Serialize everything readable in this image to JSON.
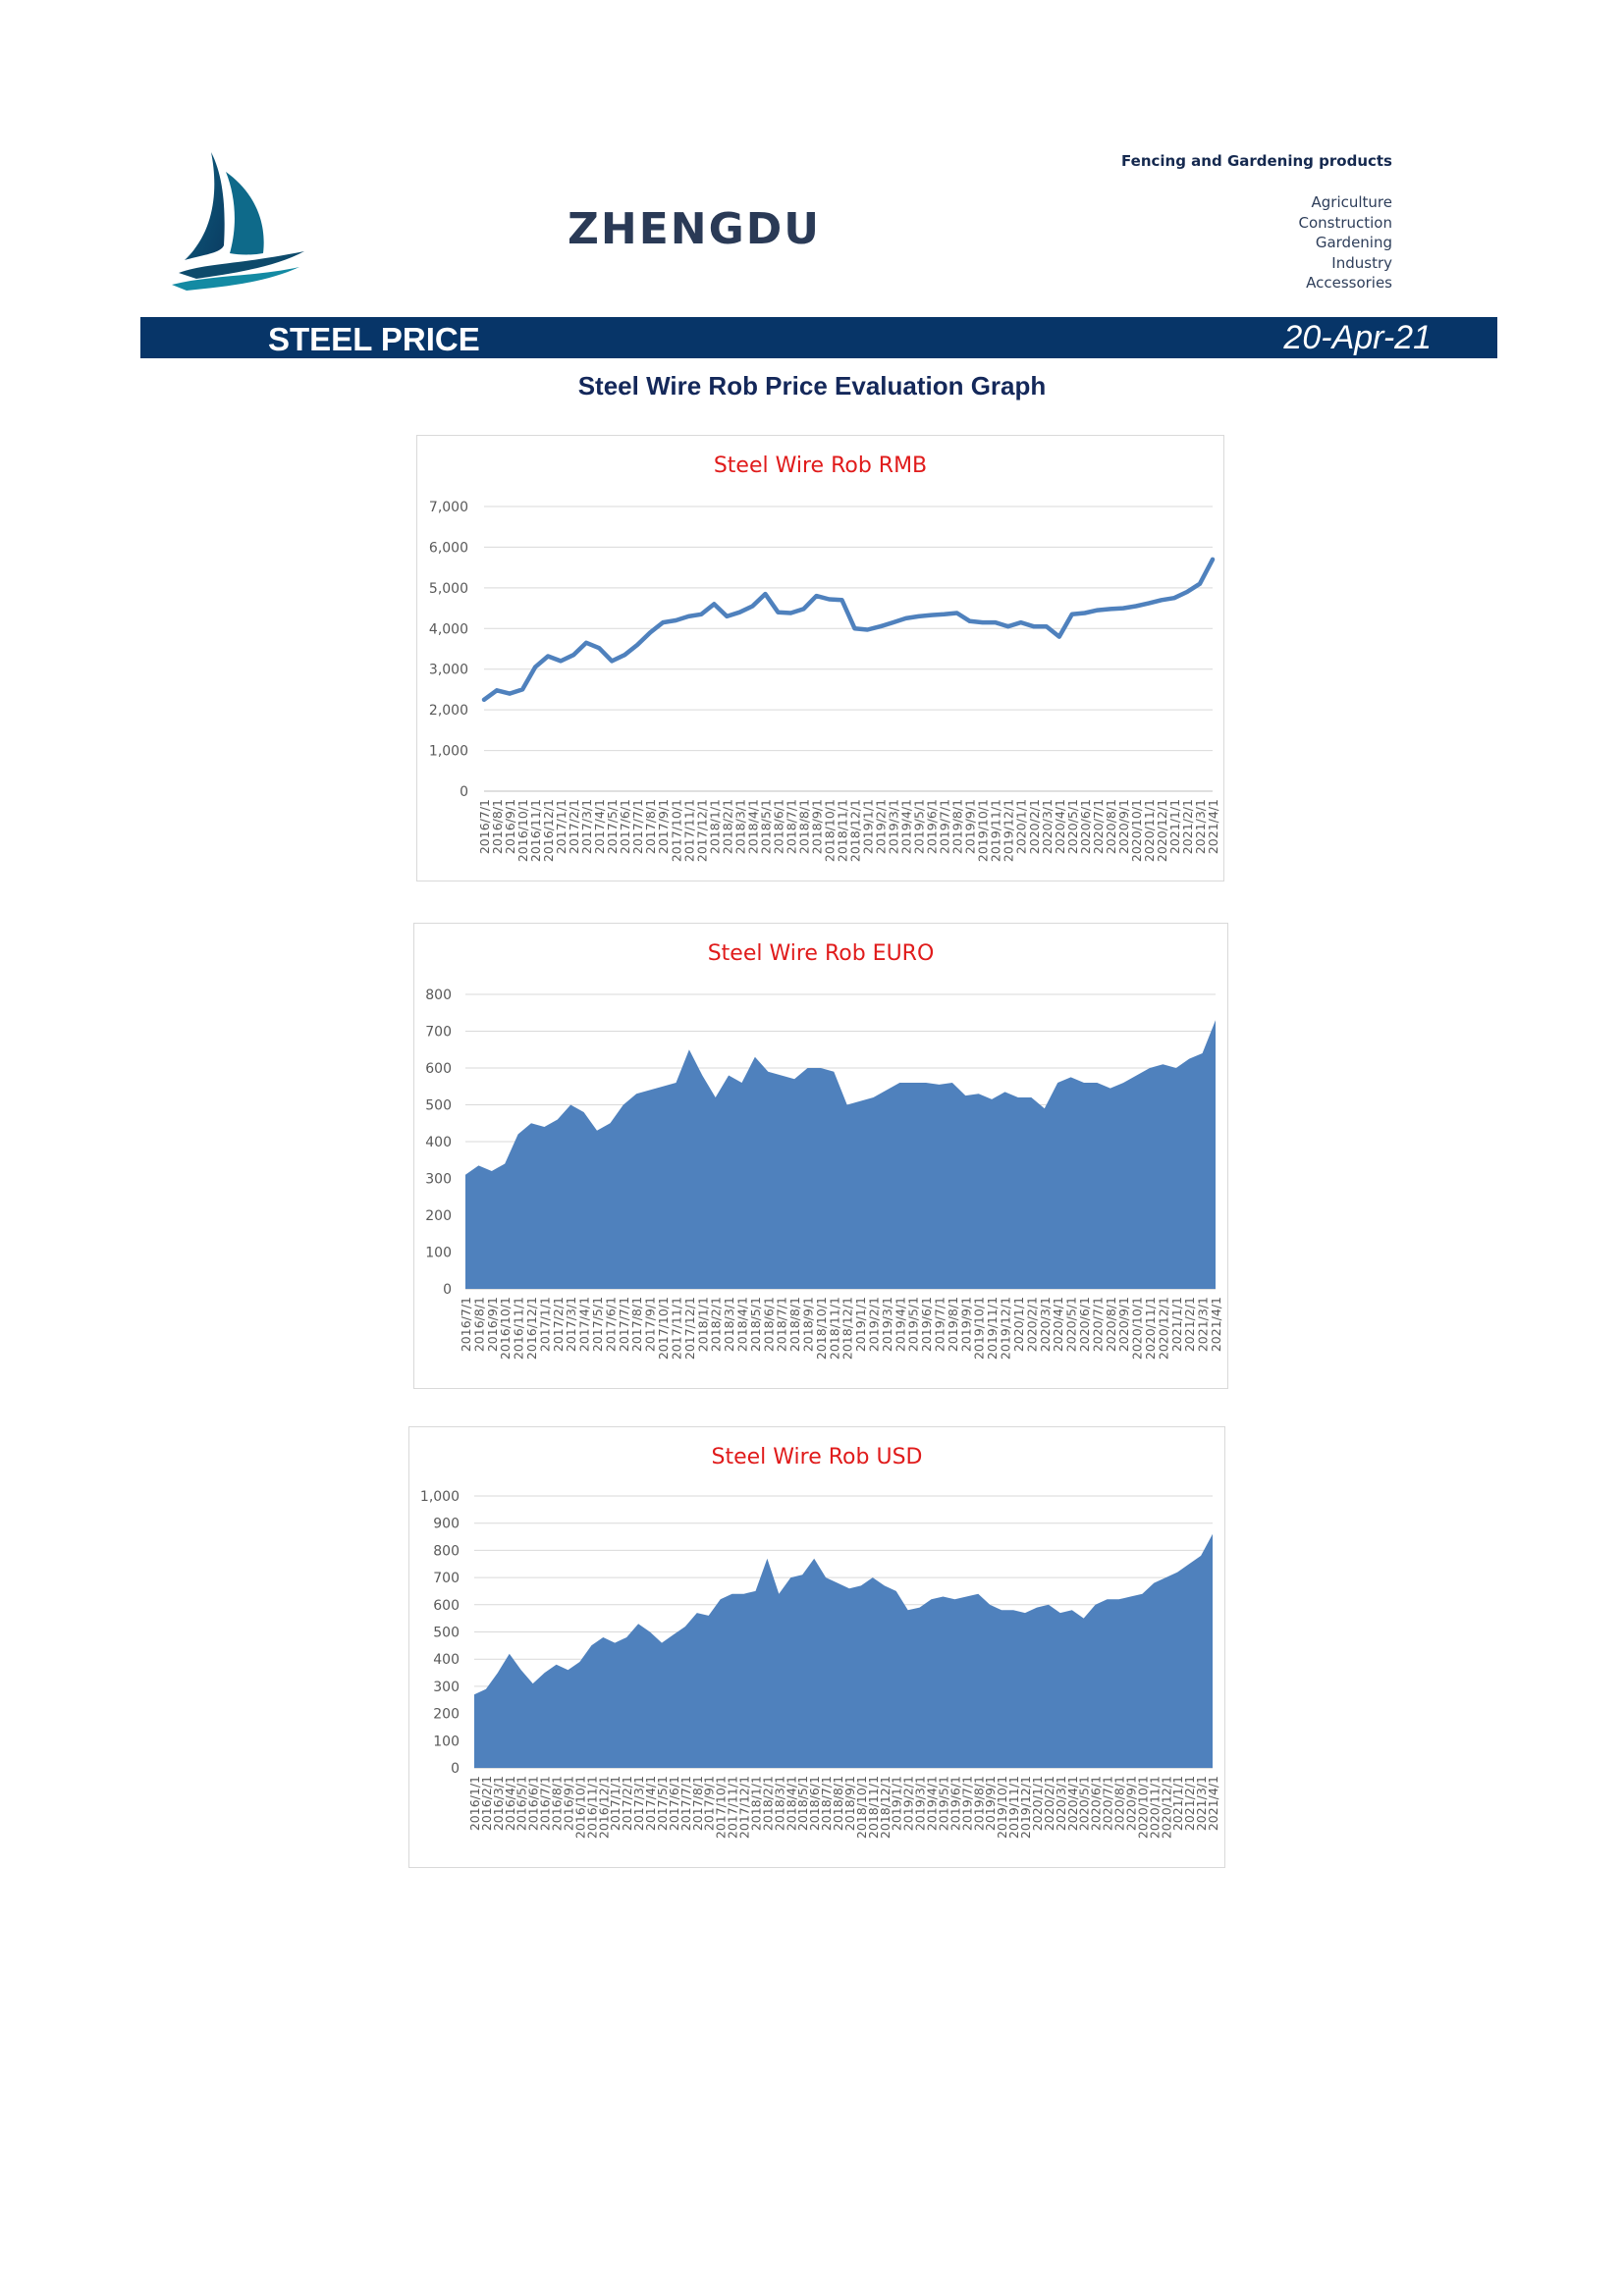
{
  "header": {
    "brand": "ZHENGDU",
    "tagline": "Fencing and Gardening products",
    "categories": [
      "Agriculture",
      "Construction",
      "Gardening",
      "Industry",
      "Accessories"
    ]
  },
  "banner": {
    "left_text": "STEEL PRICE",
    "date": "20-Apr-21"
  },
  "page_title": "Steel Wire Rob Price Evaluation Graph",
  "colors": {
    "banner": "#073568",
    "series": "#4f81bd",
    "title": "#e01b1b"
  },
  "icons": {
    "logo": "sailboat-logo-icon"
  },
  "chart_data": [
    {
      "type": "line",
      "title": "Steel Wire Rob RMB",
      "ylim": [
        0,
        7000
      ],
      "yticks": [
        "0",
        "1,000",
        "2,000",
        "3,000",
        "4,000",
        "5,000",
        "6,000",
        "7,000"
      ],
      "x": [
        "2016/7/1",
        "2016/8/1",
        "2016/9/1",
        "2016/10/1",
        "2016/11/1",
        "2016/12/1",
        "2017/1/1",
        "2017/2/1",
        "2017/3/1",
        "2017/4/1",
        "2017/5/1",
        "2017/6/1",
        "2017/7/1",
        "2017/8/1",
        "2017/9/1",
        "2017/10/1",
        "2017/11/1",
        "2017/12/1",
        "2018/1/1",
        "2018/2/1",
        "2018/3/1",
        "2018/4/1",
        "2018/5/1",
        "2018/6/1",
        "2018/7/1",
        "2018/8/1",
        "2018/9/1",
        "2018/10/1",
        "2018/11/1",
        "2018/12/1",
        "2019/1/1",
        "2019/2/1",
        "2019/3/1",
        "2019/4/1",
        "2019/5/1",
        "2019/6/1",
        "2019/7/1",
        "2019/8/1",
        "2019/9/1",
        "2019/10/1",
        "2019/11/1",
        "2019/12/1",
        "2020/1/1",
        "2020/2/1",
        "2020/3/1",
        "2020/4/1",
        "2020/5/1",
        "2020/6/1",
        "2020/7/1",
        "2020/8/1",
        "2020/9/1",
        "2020/10/1",
        "2020/11/1",
        "2020/12/1",
        "2021/1/1",
        "2021/2/1",
        "2021/3/1",
        "2021/4/1"
      ],
      "y": [
        2250,
        2480,
        2400,
        2500,
        3050,
        3320,
        3200,
        3350,
        3650,
        3520,
        3200,
        3350,
        3600,
        3900,
        4150,
        4200,
        4300,
        4350,
        4600,
        4300,
        4400,
        4550,
        4850,
        4400,
        4380,
        4480,
        4800,
        4720,
        4700,
        4000,
        3970,
        4050,
        4150,
        4250,
        4300,
        4330,
        4350,
        4380,
        4180,
        4150,
        4150,
        4050,
        4150,
        4050,
        4050,
        3800,
        4350,
        4380,
        4450,
        4480,
        4500,
        4550,
        4620,
        4700,
        4750,
        4900,
        5100,
        5700
      ]
    },
    {
      "type": "area",
      "title": "Steel Wire Rob EURO",
      "ylim": [
        0,
        800
      ],
      "yticks": [
        "0",
        "100",
        "200",
        "300",
        "400",
        "500",
        "600",
        "700",
        "800"
      ],
      "x": [
        "2016/7/1",
        "2016/8/1",
        "2016/9/1",
        "2016/10/1",
        "2016/11/1",
        "2016/12/1",
        "2017/1/1",
        "2017/2/1",
        "2017/3/1",
        "2017/4/1",
        "2017/5/1",
        "2017/6/1",
        "2017/7/1",
        "2017/8/1",
        "2017/9/1",
        "2017/10/1",
        "2017/11/1",
        "2017/12/1",
        "2018/1/1",
        "2018/2/1",
        "2018/3/1",
        "2018/4/1",
        "2018/5/1",
        "2018/6/1",
        "2018/7/1",
        "2018/8/1",
        "2018/9/1",
        "2018/10/1",
        "2018/11/1",
        "2018/12/1",
        "2019/1/1",
        "2019/2/1",
        "2019/3/1",
        "2019/4/1",
        "2019/5/1",
        "2019/6/1",
        "2019/7/1",
        "2019/8/1",
        "2019/9/1",
        "2019/10/1",
        "2019/11/1",
        "2019/12/1",
        "2020/1/1",
        "2020/2/1",
        "2020/3/1",
        "2020/4/1",
        "2020/5/1",
        "2020/6/1",
        "2020/7/1",
        "2020/8/1",
        "2020/9/1",
        "2020/10/1",
        "2020/11/1",
        "2020/12/1",
        "2021/1/1",
        "2021/2/1",
        "2021/3/1",
        "2021/4/1"
      ],
      "y": [
        310,
        335,
        320,
        340,
        420,
        450,
        440,
        460,
        500,
        480,
        430,
        450,
        500,
        530,
        540,
        550,
        560,
        650,
        580,
        520,
        580,
        560,
        630,
        590,
        580,
        570,
        600,
        600,
        590,
        500,
        510,
        520,
        540,
        560,
        560,
        560,
        555,
        560,
        525,
        530,
        515,
        535,
        520,
        520,
        490,
        560,
        575,
        560,
        560,
        545,
        560,
        580,
        600,
        610,
        600,
        625,
        640,
        730
      ]
    },
    {
      "type": "area",
      "title": "Steel Wire Rob USD",
      "ylim": [
        0,
        1000
      ],
      "yticks": [
        "0",
        "100",
        "200",
        "300",
        "400",
        "500",
        "600",
        "700",
        "800",
        "900",
        "1,000"
      ],
      "x": [
        "2016/1/1",
        "2016/2/1",
        "2016/3/1",
        "2016/4/1",
        "2016/5/1",
        "2016/6/1",
        "2016/7/1",
        "2016/8/1",
        "2016/9/1",
        "2016/10/1",
        "2016/11/1",
        "2016/12/1",
        "2017/1/1",
        "2017/2/1",
        "2017/3/1",
        "2017/4/1",
        "2017/5/1",
        "2017/6/1",
        "2017/7/1",
        "2017/8/1",
        "2017/9/1",
        "2017/10/1",
        "2017/11/1",
        "2017/12/1",
        "2018/1/1",
        "2018/2/1",
        "2018/3/1",
        "2018/4/1",
        "2018/5/1",
        "2018/6/1",
        "2018/7/1",
        "2018/8/1",
        "2018/9/1",
        "2018/10/1",
        "2018/11/1",
        "2018/12/1",
        "2019/1/1",
        "2019/2/1",
        "2019/3/1",
        "2019/4/1",
        "2019/5/1",
        "2019/6/1",
        "2019/7/1",
        "2019/8/1",
        "2019/9/1",
        "2019/10/1",
        "2019/11/1",
        "2019/12/1",
        "2020/1/1",
        "2020/2/1",
        "2020/3/1",
        "2020/4/1",
        "2020/5/1",
        "2020/6/1",
        "2020/7/1",
        "2020/8/1",
        "2020/9/1",
        "2020/10/1",
        "2020/11/1",
        "2020/12/1",
        "2021/1/1",
        "2021/2/1",
        "2021/3/1",
        "2021/4/1"
      ],
      "y": [
        270,
        290,
        350,
        420,
        360,
        310,
        350,
        380,
        360,
        390,
        450,
        480,
        460,
        480,
        530,
        500,
        460,
        490,
        520,
        570,
        560,
        620,
        640,
        640,
        650,
        770,
        640,
        700,
        710,
        770,
        700,
        680,
        660,
        670,
        700,
        670,
        650,
        580,
        590,
        620,
        630,
        620,
        630,
        640,
        600,
        580,
        580,
        570,
        590,
        600,
        570,
        580,
        550,
        600,
        620,
        620,
        630,
        640,
        680,
        700,
        720,
        750,
        780,
        860
      ]
    }
  ]
}
